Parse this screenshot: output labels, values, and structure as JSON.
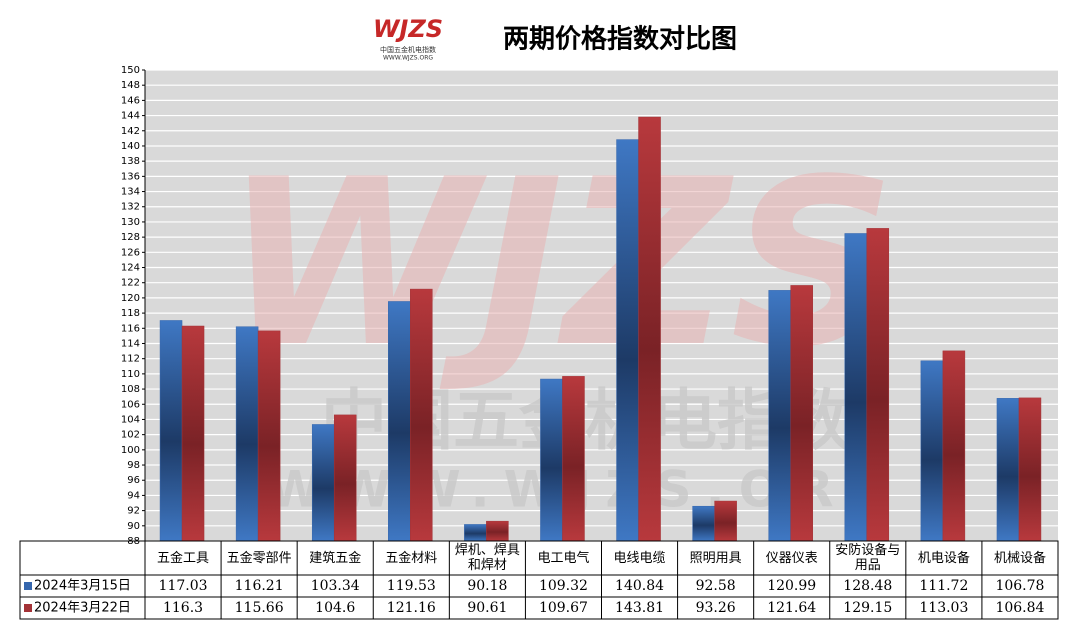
{
  "chart_data": {
    "type": "bar",
    "title": "两期价格指数对比图",
    "logo": "WJZS",
    "logo_subtitle": "中国五金机电指数",
    "logo_url": "WWW.WJZS.ORG",
    "watermark": [
      "中国五金机电指数",
      "WWW.WJZS.ORG"
    ],
    "categories": [
      "五金工具",
      "五金零部件",
      "建筑五金",
      "五金材料",
      "焊机、焊具和焊材",
      "电工电气",
      "电线电缆",
      "照明用具",
      "仪器仪表",
      "安防设备与用品",
      "机电设备",
      "机械设备"
    ],
    "series": [
      {
        "name": "2024年3月15日",
        "color": "#3566ad",
        "values": [
          117.03,
          116.21,
          103.34,
          119.53,
          90.18,
          109.32,
          140.84,
          92.58,
          120.99,
          128.48,
          111.72,
          106.78
        ]
      },
      {
        "name": "2024年3月22日",
        "color": "#a33236",
        "values": [
          116.3,
          115.66,
          104.6,
          121.16,
          90.61,
          109.67,
          143.81,
          93.26,
          121.64,
          129.15,
          113.03,
          106.84
        ]
      }
    ],
    "ylim": [
      88,
      150
    ],
    "yticks": [
      88,
      90,
      92,
      94,
      96,
      98,
      100,
      102,
      104,
      106,
      108,
      110,
      112,
      114,
      116,
      118,
      120,
      122,
      124,
      126,
      128,
      130,
      132,
      134,
      136,
      138,
      140,
      142,
      144,
      146,
      148,
      150
    ],
    "grid": true
  }
}
